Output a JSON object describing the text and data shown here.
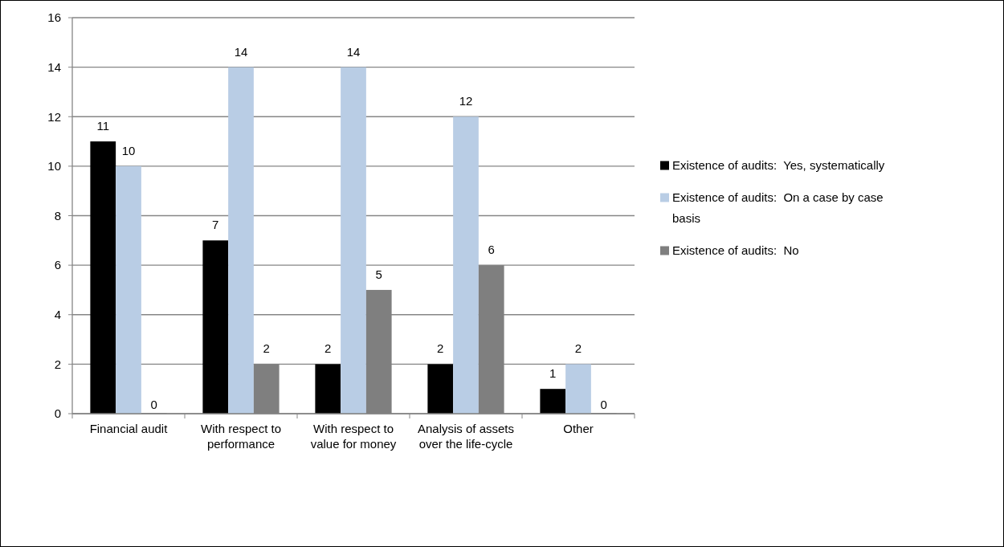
{
  "chart_data": {
    "type": "bar",
    "categories": [
      "Financial audit",
      "With respect to performance",
      "With respect to value for money",
      "Analysis of assets over the life-cycle",
      "Other"
    ],
    "series": [
      {
        "name": "Existence of audits:  Yes, systematically",
        "color": "#000000",
        "values": [
          11,
          7,
          2,
          2,
          1
        ]
      },
      {
        "name": "Existence of audits:  On a case by case basis",
        "color": "#b9cde5",
        "values": [
          10,
          14,
          14,
          12,
          2
        ]
      },
      {
        "name": "Existence of audits:  No",
        "color": "#7f7f7f",
        "values": [
          0,
          2,
          5,
          6,
          0
        ]
      }
    ],
    "ylim": [
      0,
      16
    ],
    "yticks": [
      0,
      2,
      4,
      6,
      8,
      10,
      12,
      14,
      16
    ],
    "grid": "y",
    "legend": "right",
    "data_labels": true
  }
}
